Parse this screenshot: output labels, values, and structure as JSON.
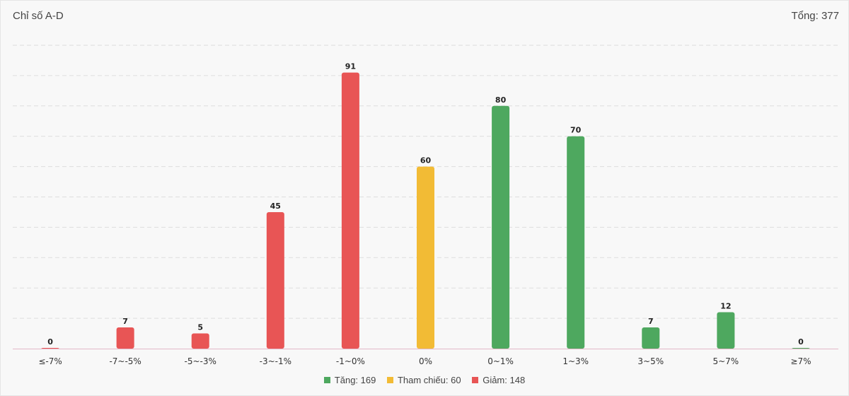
{
  "header": {
    "title": "Chỉ số A-D",
    "total_label": "Tổng:",
    "total_value": "377"
  },
  "colors": {
    "up": "#4ea85f",
    "ref": "#f2bb35",
    "down": "#e85555",
    "grid": "#dddddd",
    "baseline": "#e3b8c8"
  },
  "chart_data": {
    "type": "bar",
    "categories": [
      "≤-7%",
      "-7~-5%",
      "-5~-3%",
      "-3~-1%",
      "-1~0%",
      "0%",
      "0~1%",
      "1~3%",
      "3~5%",
      "5~7%",
      "≥7%"
    ],
    "values": [
      0,
      7,
      5,
      45,
      91,
      60,
      80,
      70,
      7,
      12,
      0
    ],
    "bar_groups": [
      "down",
      "down",
      "down",
      "down",
      "down",
      "ref",
      "up",
      "up",
      "up",
      "up",
      "up"
    ],
    "ylim": [
      0,
      100
    ],
    "grid": true,
    "data_labels": true,
    "legend_position": "bottom",
    "legend": [
      {
        "key": "up",
        "label": "Tăng: 169"
      },
      {
        "key": "ref",
        "label": "Tham chiếu: 60"
      },
      {
        "key": "down",
        "label": "Giảm: 148"
      }
    ]
  }
}
